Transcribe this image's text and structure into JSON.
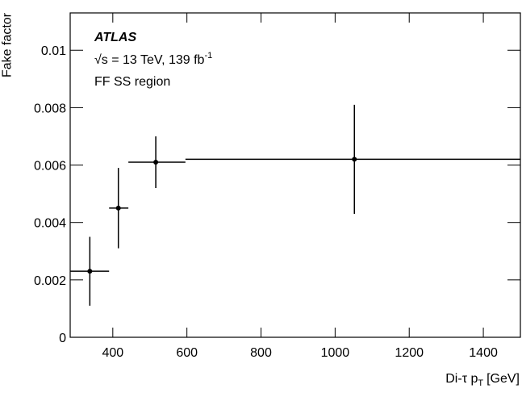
{
  "chart_data": {
    "type": "errorbar",
    "ylabel": "Fake factor",
    "xlabel": {
      "text": "Di-τ p",
      "sub": "T",
      "unit": "[GeV]"
    },
    "annotations": {
      "experiment": "ATLAS",
      "energy": "√s = 13 TeV, 139 fb",
      "energy_sup": "-1",
      "region": "FF SS region"
    },
    "series": [
      {
        "color": "#000000",
        "x": [
          338,
          415,
          516,
          1052
        ],
        "x_low": [
          285,
          390,
          442,
          596
        ],
        "x_high": [
          390,
          442,
          596,
          1500
        ],
        "values": [
          0.0023,
          0.0045,
          0.0061,
          0.0062
        ],
        "errors": [
          0.0012,
          0.0014,
          0.0009,
          0.0019
        ]
      }
    ],
    "xlim": [
      285,
      1500
    ],
    "xticks": [
      400,
      600,
      800,
      1000,
      1200,
      1400
    ],
    "ylim": [
      0,
      0.0113
    ],
    "yticks": [
      0,
      0.002,
      0.004,
      0.006,
      0.008,
      0.01
    ]
  }
}
